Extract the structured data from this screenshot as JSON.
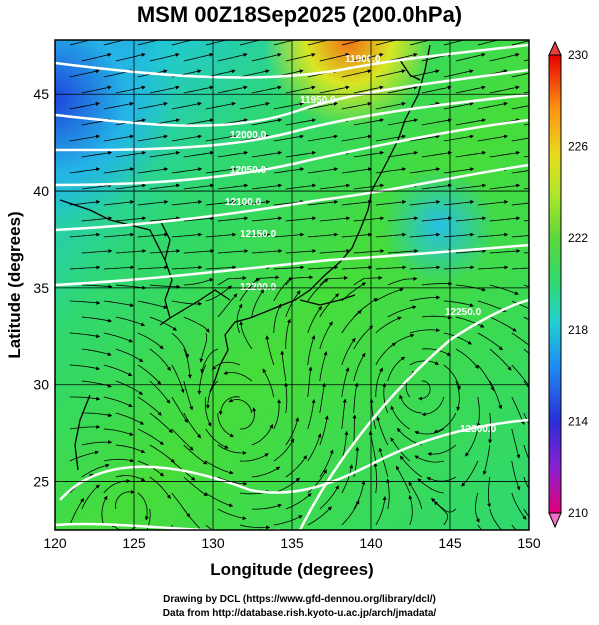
{
  "title": "MSM 00Z18Sep2025 (200.0hPa)",
  "axes": {
    "xlabel": "Longitude (degrees)",
    "ylabel": "Latitude  (degrees)",
    "x_ticks": [
      "120",
      "125",
      "130",
      "135",
      "140",
      "145",
      "150"
    ],
    "y_ticks": [
      "25",
      "30",
      "35",
      "40",
      "45"
    ]
  },
  "colorbar": {
    "ticks": [
      "230",
      "226",
      "222",
      "218",
      "214",
      "210"
    ],
    "colors": [
      "#e3007c",
      "#5b1fd6",
      "#1e3cdc",
      "#1e9bf0",
      "#23d2c8",
      "#2fd870",
      "#3cd83c",
      "#9be628",
      "#e6e61e",
      "#ffb414",
      "#f05014",
      "#e60000"
    ]
  },
  "contours": [
    {
      "label": "11900.0"
    },
    {
      "label": "11950.0"
    },
    {
      "label": "12000.0"
    },
    {
      "label": "12050.0"
    },
    {
      "label": "12100.0"
    },
    {
      "label": "12150.0"
    },
    {
      "label": "12200.0"
    },
    {
      "label": "12250.0"
    },
    {
      "label": "12300.0"
    }
  ],
  "credits": {
    "line1": "Drawing by DCL (https://www.gfd-dennou.org/library/dcl/)",
    "line2": "Data from http://database.rish.kyoto-u.ac.jp/arch/jmadata/"
  }
}
